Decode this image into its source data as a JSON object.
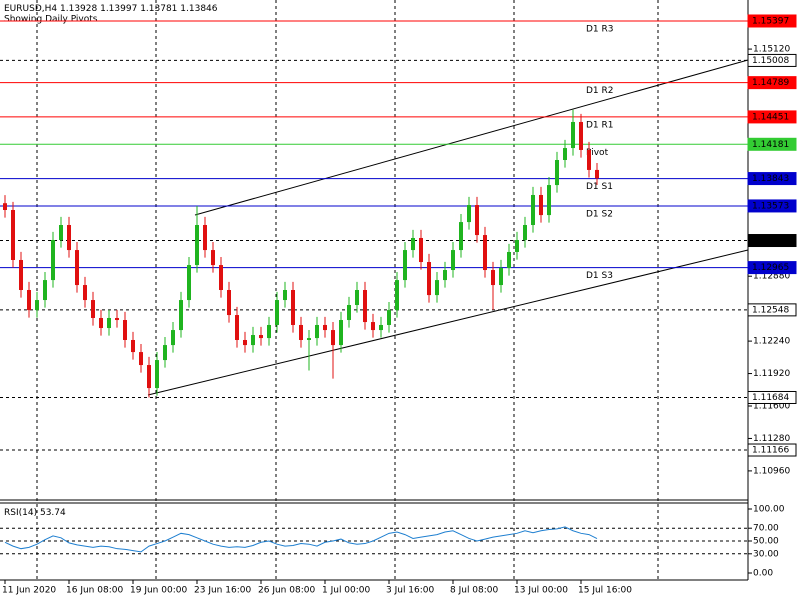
{
  "chart_data": {
    "type": "candlestick",
    "title": "EURUSD,H4",
    "subtitle": "Showing Daily Pivots",
    "categories": [
      "11 Jun 2020",
      "16 Jun 08:00",
      "19 Jun 00:00",
      "23 Jun 16:00",
      "26 Jun 08:00",
      "1 Jul 00:00",
      "3 Jul 16:00",
      "8 Jul 08:00",
      "13 Jul 00:00",
      "15 Jul 16:00"
    ],
    "up_color": "#1fb41f",
    "down_color": "#e01010",
    "open": [
      1.136,
      1.13533,
      1.1304,
      1.12744,
      1.12546,
      1.12645,
      1.12842,
      1.13237,
      1.13385,
      1.13138,
      1.12793,
      1.12645,
      1.12468,
      1.12369,
      1.12468,
      1.12448,
      1.12251,
      1.12132,
      1.12004,
      1.11777,
      1.12053,
      1.12201,
      1.12349,
      1.12645,
      1.1299,
      1.13385,
      1.13138,
      1.1299,
      1.12744,
      1.12497,
      1.12251,
      1.12201,
      1.123,
      1.1227,
      1.12399,
      1.12645,
      1.12744,
      1.12399,
      1.12251,
      1.1227,
      1.12399,
      1.12349,
      1.12201,
      1.12448,
      1.12596,
      1.12744,
      1.12428,
      1.12349,
      1.12399,
      1.12546,
      1.12842,
      1.13138,
      1.13257,
      1.1302,
      1.12694,
      1.12842,
      1.12941,
      1.13138,
      1.13414,
      1.13582,
      1.13286,
      1.12941,
      1.12793,
      1.12961,
      1.13119,
      1.13237,
      1.13385,
      1.13681,
      1.13483,
      1.13779,
      1.14026,
      1.14144,
      1.14401,
      1.14125,
      1.13928
    ],
    "high": [
      1.1368,
      1.13613,
      1.1312,
      1.12824,
      1.12725,
      1.12922,
      1.13317,
      1.13465,
      1.13465,
      1.13218,
      1.12873,
      1.12725,
      1.12548,
      1.12548,
      1.12548,
      1.12528,
      1.12331,
      1.12212,
      1.12084,
      1.12133,
      1.12281,
      1.12429,
      1.12725,
      1.1307,
      1.13573,
      1.13465,
      1.13218,
      1.1307,
      1.12824,
      1.12577,
      1.12331,
      1.1238,
      1.1238,
      1.12479,
      1.12725,
      1.12824,
      1.12824,
      1.12479,
      1.1235,
      1.12479,
      1.12479,
      1.12429,
      1.12528,
      1.12676,
      1.12824,
      1.12824,
      1.12508,
      1.12479,
      1.12626,
      1.12922,
      1.13218,
      1.13337,
      1.13337,
      1.131,
      1.12922,
      1.13021,
      1.13218,
      1.13494,
      1.13662,
      1.13662,
      1.13366,
      1.13021,
      1.13041,
      1.13199,
      1.13317,
      1.13465,
      1.13761,
      1.13761,
      1.13859,
      1.14106,
      1.14224,
      1.14522,
      1.14481,
      1.14205,
      1.13997
    ],
    "low": [
      1.13458,
      1.12965,
      1.12669,
      1.12471,
      1.12471,
      1.1257,
      1.12767,
      1.13162,
      1.13063,
      1.12718,
      1.1257,
      1.12393,
      1.12294,
      1.12294,
      1.12373,
      1.12176,
      1.12057,
      1.11929,
      1.11684,
      1.11702,
      1.11978,
      1.12126,
      1.12274,
      1.1257,
      1.12915,
      1.13063,
      1.12915,
      1.12669,
      1.12422,
      1.12176,
      1.12126,
      1.12126,
      1.12195,
      1.12195,
      1.12324,
      1.1257,
      1.12324,
      1.12176,
      1.1195,
      1.12195,
      1.12274,
      1.1187,
      1.12126,
      1.12373,
      1.12521,
      1.12353,
      1.12274,
      1.12274,
      1.12324,
      1.12471,
      1.12767,
      1.13063,
      1.12945,
      1.12619,
      1.12619,
      1.12767,
      1.12866,
      1.13063,
      1.13339,
      1.13211,
      1.12866,
      1.12548,
      1.12718,
      1.12886,
      1.13044,
      1.13162,
      1.1331,
      1.13408,
      1.13408,
      1.13704,
      1.13951,
      1.14069,
      1.1405,
      1.13853,
      1.13781
    ],
    "close": [
      1.13533,
      1.1304,
      1.12744,
      1.12546,
      1.12645,
      1.12842,
      1.13237,
      1.13385,
      1.13138,
      1.12793,
      1.12645,
      1.12468,
      1.12369,
      1.12468,
      1.12448,
      1.12251,
      1.12132,
      1.12004,
      1.11777,
      1.12053,
      1.12201,
      1.12349,
      1.12645,
      1.1299,
      1.13385,
      1.13138,
      1.1299,
      1.12744,
      1.12497,
      1.12251,
      1.12201,
      1.123,
      1.1227,
      1.12399,
      1.12645,
      1.12744,
      1.12399,
      1.12251,
      1.1227,
      1.12399,
      1.12349,
      1.12201,
      1.12448,
      1.12596,
      1.12744,
      1.12428,
      1.12349,
      1.12399,
      1.12546,
      1.12842,
      1.13138,
      1.13257,
      1.1302,
      1.12694,
      1.12842,
      1.12941,
      1.13138,
      1.13414,
      1.13582,
      1.13286,
      1.12941,
      1.12793,
      1.12961,
      1.13119,
      1.13237,
      1.13385,
      1.13681,
      1.13483,
      1.13779,
      1.14026,
      1.14144,
      1.14401,
      1.14125,
      1.13928,
      1.13846
    ],
    "ylim": [
      1.10673,
      1.15604
    ],
    "yticks": [
      {
        "value": 1.1512,
        "label": "1.15120"
      },
      {
        "value": 1.1288,
        "label": "1.12880"
      },
      {
        "value": 1.1224,
        "label": "1.12240"
      },
      {
        "value": 1.1192,
        "label": "1.11920"
      },
      {
        "value": 1.116,
        "label": "1.11600"
      },
      {
        "value": 1.1128,
        "label": "1.11280"
      },
      {
        "value": 1.1096,
        "label": "1.10960"
      }
    ],
    "levels": [
      {
        "value": 1.15397,
        "name": "D1 R3",
        "color": "#ff0000",
        "style": "solid"
      },
      {
        "value": 1.15008,
        "color": "#000000",
        "style": "dash"
      },
      {
        "value": 1.14789,
        "name": "D1 R2",
        "color": "#ff0000",
        "style": "solid"
      },
      {
        "value": 1.14451,
        "name": "D1 R1",
        "color": "#ff0000",
        "style": "solid"
      },
      {
        "value": 1.14181,
        "name": "Pivot",
        "color": "#33cc33",
        "style": "solid"
      },
      {
        "value": 1.13843,
        "name": "D1 S1",
        "color": "#0000cc",
        "style": "solid"
      },
      {
        "value": 1.13573,
        "name": "D1 S2",
        "color": "#0000cc",
        "style": "solid"
      },
      {
        "value": 1.13232,
        "color": "#000000",
        "style": "dash",
        "highlight": true
      },
      {
        "value": 1.12965,
        "name": "D1 S3",
        "color": "#0000cc",
        "style": "solid"
      },
      {
        "value": 1.12548,
        "color": "#000000",
        "style": "dash"
      },
      {
        "value": 1.11684,
        "color": "#000000",
        "style": "dash"
      },
      {
        "value": 1.11166,
        "color": "#000000",
        "style": "dash"
      }
    ],
    "rsi": {
      "name": "RSI(14)",
      "color": "#1e7fd0",
      "values": [
        48,
        42,
        38,
        40,
        45,
        52,
        58,
        55,
        47,
        44,
        42,
        40,
        42,
        41,
        38,
        37,
        35,
        33,
        42,
        46,
        50,
        56,
        62,
        60,
        55,
        50,
        45,
        42,
        40,
        41,
        40,
        43,
        48,
        50,
        45,
        42,
        43,
        46,
        45,
        42,
        48,
        50,
        53,
        47,
        45,
        46,
        50,
        56,
        62,
        64,
        60,
        54,
        56,
        58,
        60,
        64,
        66,
        60,
        54,
        50,
        53,
        56,
        58,
        60,
        62,
        66,
        63,
        66,
        68,
        69,
        72,
        66,
        62,
        60,
        53.74
      ],
      "ylim": [
        0,
        100
      ],
      "yticks": [
        {
          "value": 100,
          "label": "100.00"
        },
        {
          "value": 70,
          "label": "70.00"
        },
        {
          "value": 50,
          "label": "50.00"
        },
        {
          "value": 30,
          "label": "30.00"
        },
        {
          "value": 0,
          "label": "0.00"
        }
      ]
    }
  }
}
